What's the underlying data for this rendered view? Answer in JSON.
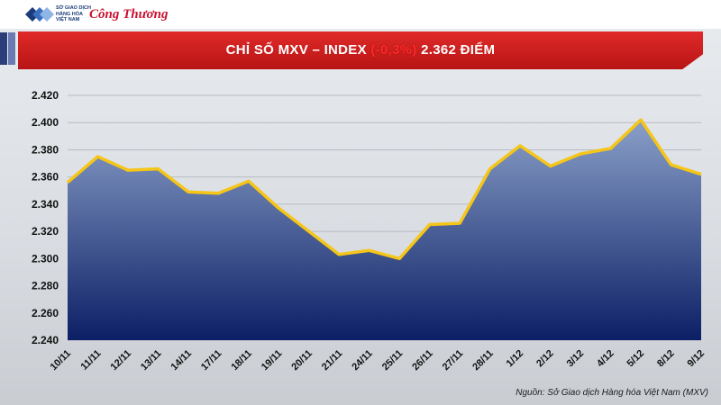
{
  "header": {
    "logo_mxv_lines": [
      "SỞ GIAO DỊCH",
      "HÀNG HÓA",
      "VIỆT NAM"
    ],
    "logo_congthuong": "Công Thương"
  },
  "title": {
    "prefix": "CHỈ SỐ MXV – INDEX ",
    "change": "(-0,3%)",
    "suffix": " 2.362 ĐIỂM"
  },
  "source": "Nguồn: Sở Giao dịch Hàng hóa Việt Nam (MXV)",
  "colors": {
    "line": "#f5c518",
    "area_top": "#8aa0c8",
    "area_bottom": "#0c1f66",
    "banner": "#d01e1e"
  },
  "chart_data": {
    "type": "area",
    "title": "CHỈ SỐ MXV – INDEX (-0,3%) 2.362 ĐIỂM",
    "xlabel": "",
    "ylabel": "",
    "categories": [
      "10/11",
      "11/11",
      "12/11",
      "13/11",
      "14/11",
      "17/11",
      "18/11",
      "19/11",
      "20/11",
      "21/11",
      "24/11",
      "25/11",
      "26/11",
      "27/11",
      "28/11",
      "1/12",
      "2/12",
      "3/12",
      "4/12",
      "5/12",
      "8/12",
      "9/12"
    ],
    "values": [
      2356,
      2375,
      2365,
      2366,
      2349,
      2348,
      2357,
      2337,
      2320,
      2303,
      2306,
      2300,
      2325,
      2326,
      2366,
      2383,
      2368,
      2377,
      2381,
      2402,
      2369,
      2362
    ],
    "ylim": [
      2240,
      2420
    ],
    "yticks": [
      2240,
      2260,
      2280,
      2300,
      2320,
      2340,
      2360,
      2380,
      2400,
      2420
    ],
    "ytick_labels": [
      "2.240",
      "2.260",
      "2.280",
      "2.300",
      "2.320",
      "2.340",
      "2.360",
      "2.380",
      "2.400",
      "2.420"
    ],
    "grid": true,
    "legend": "none"
  }
}
